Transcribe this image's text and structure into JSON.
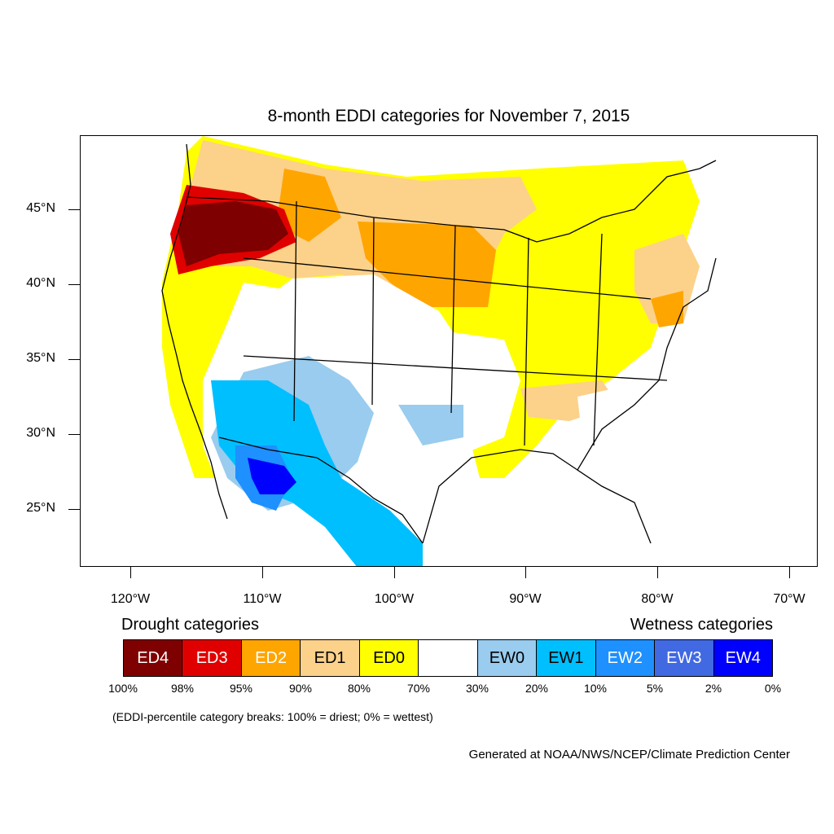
{
  "title": "8-month EDDI categories for November 7, 2015",
  "lat_labels": [
    "45°N",
    "40°N",
    "35°N",
    "30°N",
    "25°N"
  ],
  "lon_labels": [
    "120°W",
    "110°W",
    "100°W",
    "90°W",
    "80°W",
    "70°W"
  ],
  "legend": {
    "drought_heading": "Drought categories",
    "wetness_heading": "Wetness categories",
    "categories": [
      {
        "label": "ED4",
        "color": "#7f0000",
        "text_color": "#ffffff"
      },
      {
        "label": "ED3",
        "color": "#e00000",
        "text_color": "#ffffff"
      },
      {
        "label": "ED2",
        "color": "#ffa500",
        "text_color": "#ffffff"
      },
      {
        "label": "ED1",
        "color": "#fcd18a",
        "text_color": "#000000"
      },
      {
        "label": "ED0",
        "color": "#ffff00",
        "text_color": "#000000"
      },
      {
        "label": "",
        "color": "#ffffff",
        "text_color": "#000000"
      },
      {
        "label": "EW0",
        "color": "#99ccee",
        "text_color": "#000000"
      },
      {
        "label": "EW1",
        "color": "#00bfff",
        "text_color": "#000000"
      },
      {
        "label": "EW2",
        "color": "#1e90ff",
        "text_color": "#ffffff"
      },
      {
        "label": "EW3",
        "color": "#4169e1",
        "text_color": "#ffffff"
      },
      {
        "label": "EW4",
        "color": "#0000ff",
        "text_color": "#ffffff"
      }
    ],
    "percentiles": [
      "100%",
      "98%",
      "95%",
      "90%",
      "80%",
      "70%",
      "30%",
      "20%",
      "10%",
      "5%",
      "2%",
      "0%"
    ]
  },
  "note": "(EDDI-percentile category breaks: 100% = driest; 0% = wettest)",
  "credit": "Generated at NOAA/NWS/NCEP/Climate Prediction Center"
}
